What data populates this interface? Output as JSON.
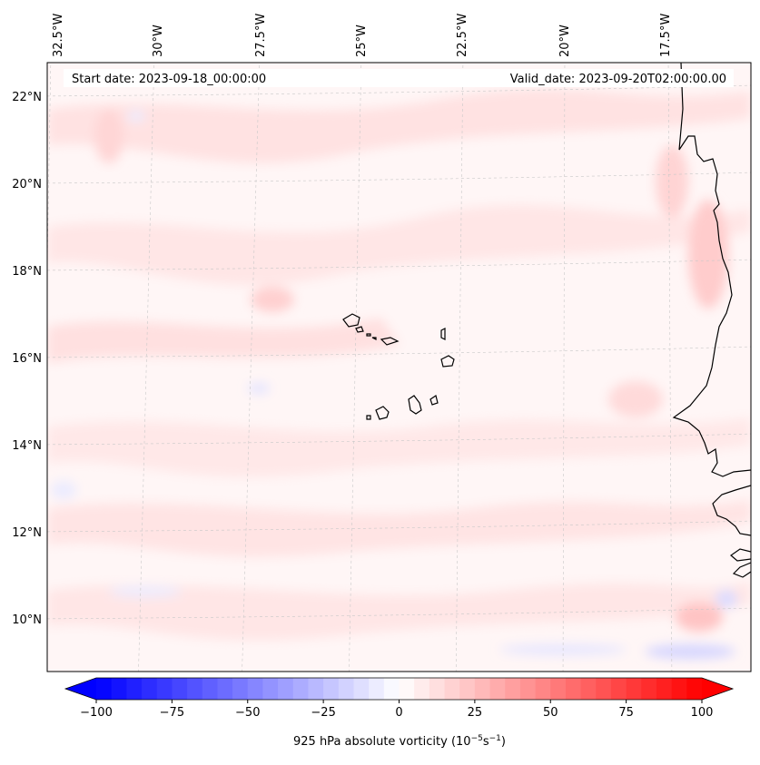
{
  "map": {
    "start_label": "Start date: 2023-09-18_00:00:00",
    "valid_label": "Valid_date: 2023-09-20T02:00:00.00",
    "lon_labels": [
      "32.5°W",
      "30°W",
      "27.5°W",
      "25°W",
      "22.5°W",
      "20°W",
      "17.5°W"
    ],
    "lat_labels": [
      "22°N",
      "20°N",
      "18°N",
      "16°N",
      "14°N",
      "12°N",
      "10°N"
    ]
  },
  "colorbar": {
    "label_main": "925 hPa absolute vorticity (10",
    "label_exp1": "−5",
    "label_mid": "s",
    "label_exp2": "−1",
    "label_end": ")",
    "ticks": [
      "−100",
      "−75",
      "−50",
      "−25",
      "0",
      "25",
      "50",
      "75",
      "100"
    ],
    "vmin": -100,
    "vmax": 100,
    "levels": 40
  },
  "colors": {
    "low": "#0000ff",
    "mid": "#ffffff",
    "high": "#ff0000",
    "coast": "#000000",
    "grid": "#c8c8c8"
  }
}
